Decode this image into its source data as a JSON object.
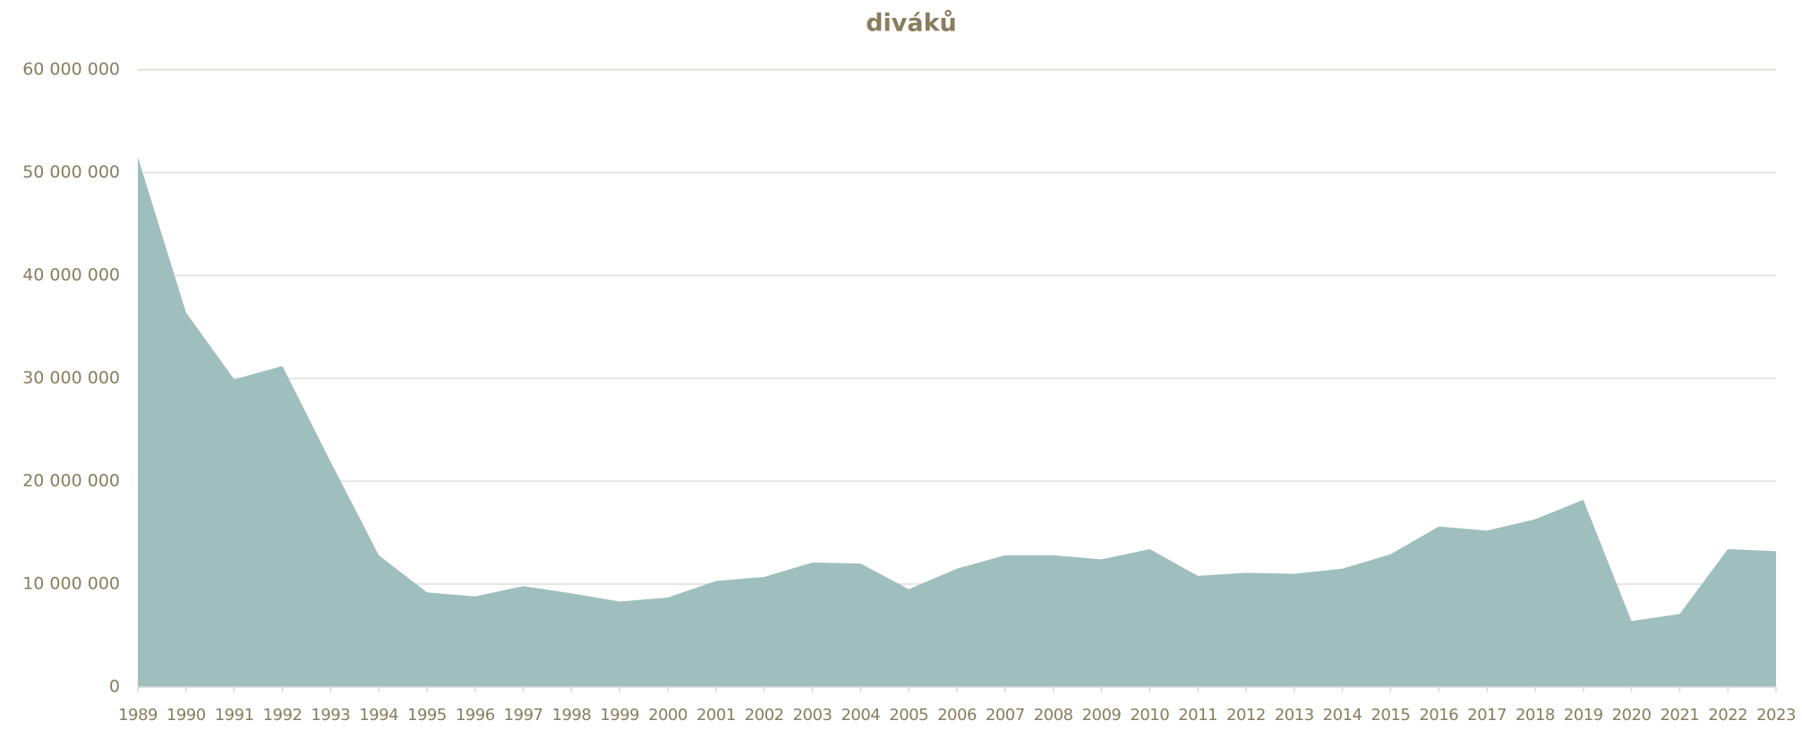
{
  "chart_data": {
    "type": "area",
    "title": "diváků",
    "categories": [
      "1989",
      "1990",
      "1991",
      "1992",
      "1993",
      "1994",
      "1995",
      "1996",
      "1997",
      "1998",
      "1999",
      "2000",
      "2001",
      "2002",
      "2003",
      "2004",
      "2005",
      "2006",
      "2007",
      "2008",
      "2009",
      "2010",
      "2011",
      "2012",
      "2013",
      "2014",
      "2015",
      "2016",
      "2017",
      "2018",
      "2019",
      "2020",
      "2021",
      "2022",
      "2023"
    ],
    "values": [
      51500000,
      36400000,
      29900000,
      31200000,
      21900000,
      12800000,
      9200000,
      8800000,
      9800000,
      9100000,
      8300000,
      8700000,
      10300000,
      10700000,
      12100000,
      12000000,
      9500000,
      11500000,
      12800000,
      12800000,
      12400000,
      13400000,
      10800000,
      11100000,
      11000000,
      11500000,
      12900000,
      15600000,
      15200000,
      16300000,
      18200000,
      6400000,
      7100000,
      13400000,
      13200000
    ],
    "color": "#9ebfbd",
    "ylim": [
      0,
      60000000
    ],
    "yticks": [
      0,
      {
        "value": 10000000,
        "label": "10 000 000"
      },
      {
        "value": 20000000,
        "label": "20 000 000"
      },
      {
        "value": 30000000,
        "label": "30 000 000"
      },
      {
        "value": 40000000,
        "label": "40 000 000"
      },
      {
        "value": 50000000,
        "label": "50 000 000"
      },
      {
        "value": 60000000,
        "label": "60 000 000"
      }
    ],
    "grid": true
  }
}
